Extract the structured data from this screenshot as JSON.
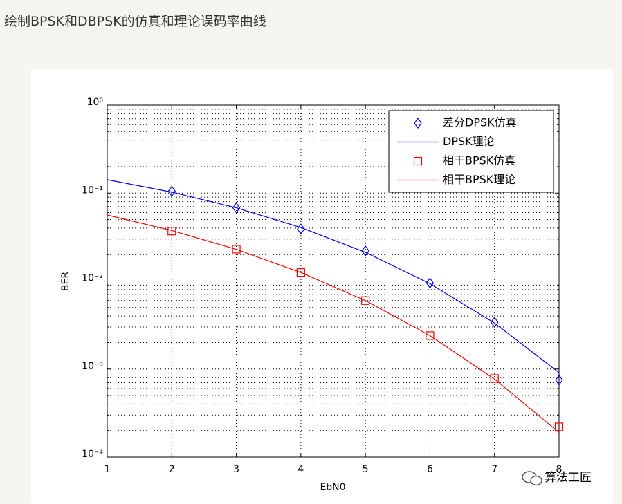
{
  "header": {
    "title": "绘制BPSK和DBPSK的仿真和理论误码率曲线"
  },
  "watermark": "算法工匠",
  "chart_data": {
    "type": "line",
    "xlabel": "EbN0",
    "ylabel": "BER",
    "xlim": [
      1,
      8
    ],
    "xticks": [
      1,
      2,
      3,
      4,
      5,
      6,
      7,
      8
    ],
    "ylim": [
      0.0001,
      1
    ],
    "yscale": "log",
    "yticks": [
      {
        "value": 0.0001,
        "label": "10⁻⁴"
      },
      {
        "value": 0.001,
        "label": "10⁻³"
      },
      {
        "value": 0.01,
        "label": "10⁻²"
      },
      {
        "value": 0.1,
        "label": "10⁻¹"
      },
      {
        "value": 1,
        "label": "10⁰"
      }
    ],
    "grid": true,
    "minor_grid": true,
    "legend": "upper right",
    "series": [
      {
        "name": "差分DPSK仿真",
        "color": "#0000ff",
        "marker": "diamond",
        "linestyle": "none",
        "x": [
          2,
          3,
          4,
          5,
          6,
          7,
          8
        ],
        "values": [
          0.105,
          0.068,
          0.039,
          0.022,
          0.0095,
          0.0034,
          0.00075
        ]
      },
      {
        "name": "DPSK理论",
        "color": "#0000ff",
        "marker": "none",
        "linestyle": "solid",
        "x": [
          1,
          2,
          3,
          4,
          5,
          6,
          7,
          8
        ],
        "values": [
          0.142,
          0.1025,
          0.068,
          0.0406,
          0.0212,
          0.00934,
          0.00333,
          0.00091
        ]
      },
      {
        "name": "相干BPSK仿真",
        "color": "#ff0000",
        "marker": "square",
        "linestyle": "none",
        "x": [
          2,
          3,
          4,
          5,
          6,
          7,
          8
        ],
        "values": [
          0.037,
          0.023,
          0.0125,
          0.006,
          0.0024,
          0.00078,
          0.00022
        ]
      },
      {
        "name": "相干BPSK理论",
        "color": "#ff0000",
        "marker": "none",
        "linestyle": "solid",
        "x": [
          1,
          2,
          3,
          4,
          5,
          6,
          7,
          8
        ],
        "values": [
          0.0563,
          0.0375,
          0.0229,
          0.0125,
          0.006,
          0.0024,
          0.00077,
          0.00019
        ]
      }
    ]
  }
}
